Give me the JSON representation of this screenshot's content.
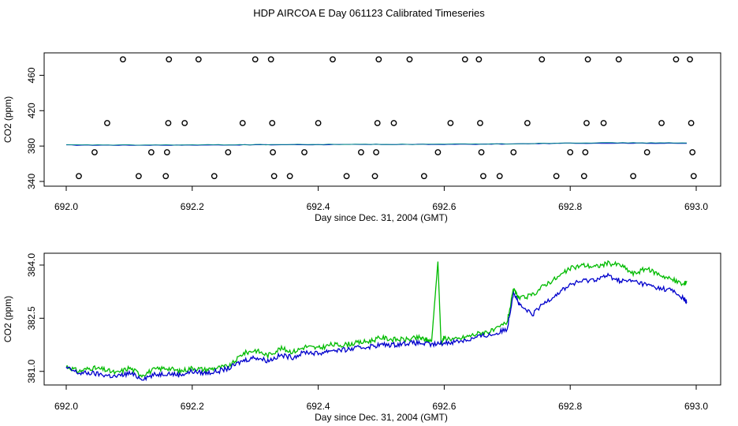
{
  "title": "HDP AIRCOA E  Day 061123  Calibrated Timeseries",
  "colors": {
    "blue": "#0000cc",
    "green": "#00bb00",
    "teal": "#008888",
    "axis": "#000000"
  },
  "chart_data": [
    {
      "type": "scatter",
      "xlabel": "Day since Dec. 31, 2004 (GMT)",
      "ylabel": "CO2 (ppm)",
      "xlim": [
        692.0,
        693.0
      ],
      "ylim": [
        340,
        480
      ],
      "xticks": [
        "692.0",
        "692.2",
        "692.4",
        "692.6",
        "692.8",
        "693.0"
      ],
      "yticks": [
        "340",
        "380",
        "420",
        "460"
      ],
      "grid": false,
      "series": [
        {
          "marker": "open-circle",
          "points": [
            [
              692.02,
              346
            ],
            [
              692.045,
              373
            ],
            [
              692.065,
              406
            ],
            [
              692.09,
              478
            ],
            [
              692.115,
              346
            ],
            [
              692.135,
              373
            ],
            [
              692.158,
              346
            ],
            [
              692.16,
              373
            ],
            [
              692.162,
              406
            ],
            [
              692.163,
              478
            ],
            [
              692.188,
              406
            ],
            [
              692.21,
              478
            ],
            [
              692.235,
              346
            ],
            [
              692.257,
              373
            ],
            [
              692.28,
              406
            ],
            [
              692.3,
              478
            ],
            [
              692.325,
              478
            ],
            [
              692.327,
              406
            ],
            [
              692.328,
              373
            ],
            [
              692.33,
              346
            ],
            [
              692.355,
              346
            ],
            [
              692.378,
              373
            ],
            [
              692.4,
              406
            ],
            [
              692.423,
              478
            ],
            [
              692.445,
              346
            ],
            [
              692.468,
              373
            ],
            [
              692.49,
              346
            ],
            [
              692.492,
              373
            ],
            [
              692.494,
              406
            ],
            [
              692.496,
              478
            ],
            [
              692.52,
              406
            ],
            [
              692.545,
              478
            ],
            [
              692.568,
              346
            ],
            [
              692.59,
              373
            ],
            [
              692.61,
              406
            ],
            [
              692.633,
              478
            ],
            [
              692.655,
              478
            ],
            [
              692.657,
              406
            ],
            [
              692.659,
              373
            ],
            [
              692.662,
              346
            ],
            [
              692.688,
              346
            ],
            [
              692.71,
              373
            ],
            [
              692.732,
              406
            ],
            [
              692.755,
              478
            ],
            [
              692.778,
              346
            ],
            [
              692.8,
              373
            ],
            [
              692.822,
              346
            ],
            [
              692.824,
              373
            ],
            [
              692.826,
              406
            ],
            [
              692.828,
              478
            ],
            [
              692.853,
              406
            ],
            [
              692.877,
              478
            ],
            [
              692.9,
              346
            ],
            [
              692.922,
              373
            ],
            [
              692.945,
              406
            ],
            [
              692.968,
              478
            ],
            [
              692.99,
              478
            ],
            [
              692.992,
              406
            ],
            [
              692.994,
              373
            ],
            [
              692.996,
              346
            ]
          ]
        }
      ],
      "lines_note": "blue and green CO2 traces near 381-384 ppm",
      "lines": [
        {
          "color": "blue",
          "x": [
            692.0,
            692.1,
            692.2,
            692.3,
            692.4,
            692.5,
            692.6,
            692.7,
            692.8,
            692.9,
            692.985
          ],
          "values": [
            381.1,
            381.0,
            381.1,
            381.4,
            381.6,
            381.8,
            381.9,
            382.3,
            383.2,
            383.3,
            383.0
          ]
        },
        {
          "color": "teal",
          "x": [
            692.0,
            692.1,
            692.2,
            692.3,
            692.4,
            692.5,
            692.6,
            692.7,
            692.8,
            692.9,
            692.985
          ],
          "values": [
            381.3,
            381.2,
            381.3,
            381.6,
            381.8,
            382.0,
            382.1,
            382.5,
            383.6,
            383.7,
            383.4
          ]
        }
      ]
    },
    {
      "type": "line",
      "xlabel": "Day since Dec. 31, 2004 (GMT)",
      "ylabel": "CO2 (ppm)",
      "xlim": [
        692.0,
        693.0
      ],
      "ylim": [
        380.75,
        384.2
      ],
      "xticks": [
        "692.0",
        "692.2",
        "692.4",
        "692.6",
        "692.8",
        "693.0"
      ],
      "yticks": [
        "381.0",
        "382.5",
        "384.0"
      ],
      "grid": false,
      "series": [
        {
          "color": "green",
          "x": [
            692.0,
            692.02,
            692.04,
            692.06,
            692.08,
            692.1,
            692.12,
            692.14,
            692.16,
            692.18,
            692.2,
            692.22,
            692.24,
            692.26,
            692.28,
            692.3,
            692.32,
            692.34,
            692.36,
            692.38,
            692.4,
            692.42,
            692.44,
            692.46,
            692.48,
            692.5,
            692.52,
            692.54,
            692.56,
            692.57,
            692.58,
            692.59,
            692.595,
            692.6,
            692.62,
            692.64,
            692.66,
            692.68,
            692.7,
            692.71,
            692.72,
            692.74,
            692.76,
            692.78,
            692.8,
            692.82,
            692.84,
            692.86,
            692.88,
            692.9,
            692.92,
            692.94,
            692.96,
            692.98,
            692.985
          ],
          "values": [
            381.15,
            381.0,
            381.1,
            381.05,
            380.95,
            381.1,
            380.9,
            381.05,
            381.1,
            381.0,
            381.1,
            381.05,
            381.1,
            381.15,
            381.5,
            381.6,
            381.45,
            381.65,
            381.55,
            381.7,
            381.65,
            381.75,
            381.75,
            381.8,
            381.85,
            381.95,
            381.9,
            381.9,
            381.95,
            381.9,
            381.85,
            384.1,
            381.8,
            381.95,
            381.9,
            382.0,
            382.1,
            382.15,
            382.4,
            383.3,
            383.05,
            383.15,
            383.45,
            383.65,
            383.9,
            384.0,
            383.95,
            384.05,
            384.0,
            383.75,
            383.9,
            383.75,
            383.6,
            383.45,
            383.55
          ]
        },
        {
          "color": "blue",
          "x": [
            692.0,
            692.02,
            692.04,
            692.06,
            692.08,
            692.1,
            692.12,
            692.14,
            692.16,
            692.18,
            692.2,
            692.22,
            692.24,
            692.26,
            692.28,
            692.3,
            692.32,
            692.34,
            692.36,
            692.38,
            692.4,
            692.42,
            692.44,
            692.46,
            692.48,
            692.5,
            692.52,
            692.54,
            692.56,
            692.58,
            692.6,
            692.62,
            692.64,
            692.66,
            692.68,
            692.7,
            692.71,
            692.72,
            692.74,
            692.76,
            692.78,
            692.8,
            692.82,
            692.84,
            692.86,
            692.88,
            692.9,
            692.92,
            692.94,
            692.96,
            692.98,
            692.985
          ],
          "values": [
            381.1,
            380.95,
            380.95,
            380.9,
            380.85,
            380.95,
            380.8,
            380.9,
            380.95,
            380.9,
            381.0,
            380.95,
            381.0,
            381.1,
            381.3,
            381.4,
            381.3,
            381.45,
            381.4,
            381.55,
            381.5,
            381.6,
            381.6,
            381.65,
            381.7,
            381.75,
            381.75,
            381.8,
            381.8,
            381.75,
            381.8,
            381.85,
            381.9,
            382.0,
            382.05,
            382.2,
            383.25,
            382.85,
            382.6,
            382.95,
            383.2,
            383.45,
            383.55,
            383.6,
            383.7,
            383.55,
            383.55,
            383.45,
            383.35,
            383.3,
            383.05,
            382.95
          ]
        }
      ]
    }
  ]
}
